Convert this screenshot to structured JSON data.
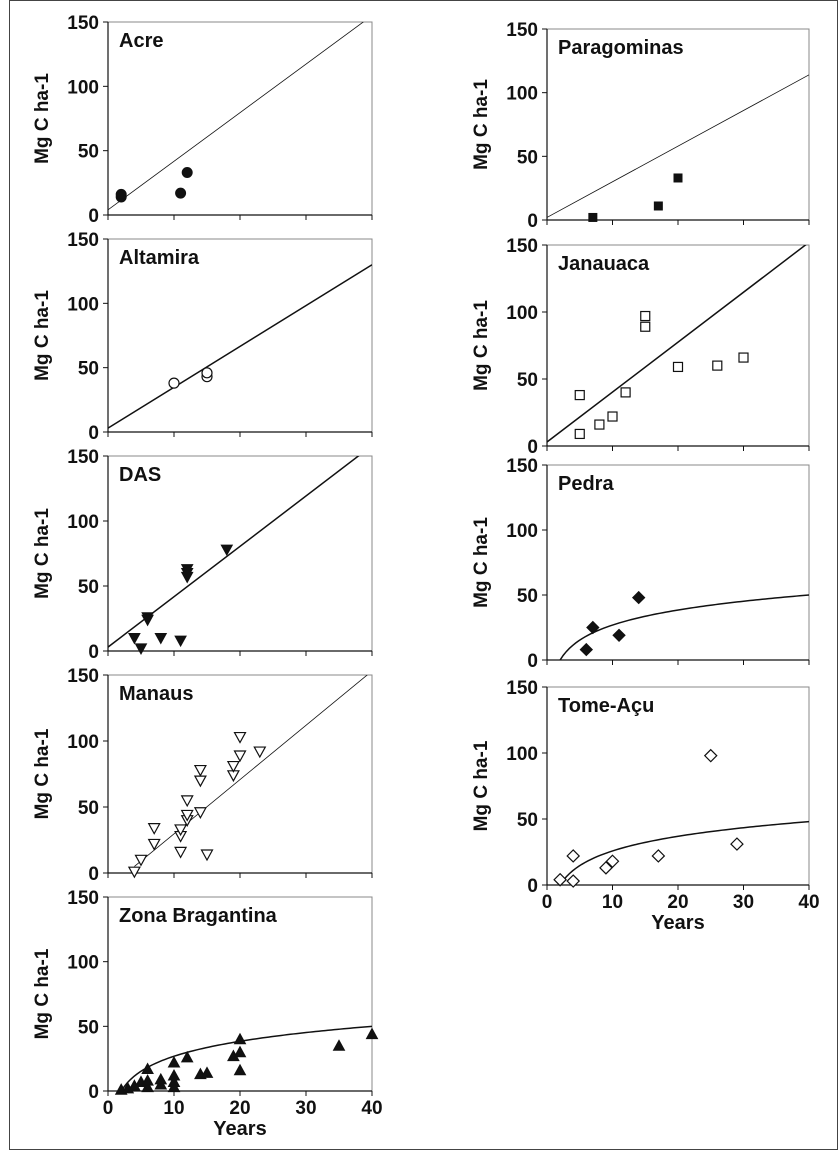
{
  "chart_data": [
    {
      "type": "scatter",
      "title": "Acre",
      "ylabel": "Mg C ha-1",
      "xlabel": "",
      "xlim": [
        0,
        40
      ],
      "ylim": [
        0,
        150
      ],
      "y_ticks": [
        0,
        50,
        100,
        150
      ],
      "x_ticks": [
        0,
        10,
        20,
        30,
        40
      ],
      "x_tick_labels_shown": false,
      "marker": "filled-circle",
      "fit": {
        "kind": "linear",
        "thin": true,
        "points": [
          [
            0,
            4
          ],
          [
            40,
            155
          ]
        ]
      },
      "series": [
        {
          "points": [
            [
              2,
              14
            ],
            [
              2,
              16
            ],
            [
              11,
              17
            ],
            [
              12,
              33
            ]
          ]
        }
      ]
    },
    {
      "type": "scatter",
      "title": "Altamira",
      "ylabel": "Mg C ha-1",
      "xlabel": "",
      "xlim": [
        0,
        40
      ],
      "ylim": [
        0,
        150
      ],
      "y_ticks": [
        0,
        50,
        100,
        150
      ],
      "x_ticks": [
        0,
        10,
        20,
        30,
        40
      ],
      "x_tick_labels_shown": false,
      "marker": "open-circle",
      "fit": {
        "kind": "linear",
        "thin": false,
        "points": [
          [
            0,
            3
          ],
          [
            40,
            130
          ]
        ]
      },
      "series": [
        {
          "points": [
            [
              10,
              38
            ],
            [
              15,
              43
            ],
            [
              15,
              46
            ]
          ]
        }
      ]
    },
    {
      "type": "scatter",
      "title": "DAS",
      "ylabel": "Mg C ha-1",
      "xlabel": "",
      "xlim": [
        0,
        40
      ],
      "ylim": [
        0,
        150
      ],
      "y_ticks": [
        0,
        50,
        100,
        150
      ],
      "x_ticks": [
        0,
        10,
        20,
        30,
        40
      ],
      "x_tick_labels_shown": false,
      "marker": "filled-triangle-down",
      "fit": {
        "kind": "linear",
        "thin": false,
        "points": [
          [
            0,
            3
          ],
          [
            40,
            158
          ]
        ]
      },
      "series": [
        {
          "points": [
            [
              4,
              10
            ],
            [
              5,
              2
            ],
            [
              6,
              26
            ],
            [
              6,
              24
            ],
            [
              8,
              10
            ],
            [
              11,
              8
            ],
            [
              12,
              57
            ],
            [
              12,
              60
            ],
            [
              12,
              63
            ],
            [
              18,
              78
            ]
          ]
        }
      ]
    },
    {
      "type": "scatter",
      "title": "Manaus",
      "ylabel": "Mg C ha-1",
      "xlabel": "",
      "xlim": [
        0,
        40
      ],
      "ylim": [
        0,
        150
      ],
      "y_ticks": [
        0,
        50,
        100,
        150
      ],
      "x_ticks": [
        0,
        10,
        20,
        30,
        40
      ],
      "x_tick_labels_shown": false,
      "marker": "open-triangle-down",
      "fit": {
        "kind": "linear",
        "thin": true,
        "points": [
          [
            4,
            5
          ],
          [
            40,
            153
          ]
        ]
      },
      "series": [
        {
          "points": [
            [
              4,
              1
            ],
            [
              5,
              10
            ],
            [
              7,
              22
            ],
            [
              7,
              34
            ],
            [
              11,
              16
            ],
            [
              11,
              28
            ],
            [
              11,
              33
            ],
            [
              12,
              40
            ],
            [
              12,
              44
            ],
            [
              12,
              55
            ],
            [
              14,
              46
            ],
            [
              14,
              70
            ],
            [
              14,
              78
            ],
            [
              15,
              14
            ],
            [
              19,
              74
            ],
            [
              19,
              81
            ],
            [
              20,
              89
            ],
            [
              20,
              103
            ],
            [
              23,
              92
            ]
          ]
        }
      ]
    },
    {
      "type": "scatter",
      "title": "Zona Bragantina",
      "ylabel": "Mg C ha-1",
      "xlabel": "Years",
      "xlim": [
        0,
        40
      ],
      "ylim": [
        0,
        150
      ],
      "y_ticks": [
        0,
        50,
        100,
        150
      ],
      "x_ticks": [
        0,
        10,
        20,
        30,
        40
      ],
      "x_tick_labels_shown": true,
      "marker": "filled-triangle-up",
      "fit": {
        "kind": "log",
        "thin": false,
        "x_range": [
          2,
          40
        ],
        "y_at_x_range": [
          0,
          50
        ]
      },
      "series": [
        {
          "points": [
            [
              2,
              1
            ],
            [
              3,
              2
            ],
            [
              4,
              4
            ],
            [
              5,
              7
            ],
            [
              6,
              3
            ],
            [
              6,
              8
            ],
            [
              6,
              17
            ],
            [
              8,
              5
            ],
            [
              8,
              9
            ],
            [
              10,
              3
            ],
            [
              10,
              7
            ],
            [
              10,
              12
            ],
            [
              10,
              22
            ],
            [
              12,
              26
            ],
            [
              14,
              13
            ],
            [
              15,
              14
            ],
            [
              19,
              27
            ],
            [
              20,
              16
            ],
            [
              20,
              30
            ],
            [
              20,
              40
            ],
            [
              35,
              35
            ],
            [
              40,
              44
            ]
          ]
        }
      ]
    },
    {
      "type": "scatter",
      "title": "Paragominas",
      "ylabel": "Mg C ha-1",
      "xlabel": "",
      "xlim": [
        0,
        40
      ],
      "ylim": [
        0,
        150
      ],
      "y_ticks": [
        0,
        50,
        100,
        150
      ],
      "x_ticks": [
        0,
        10,
        20,
        30,
        40
      ],
      "x_tick_labels_shown": false,
      "marker": "filled-square",
      "fit": {
        "kind": "linear",
        "thin": true,
        "points": [
          [
            0,
            2
          ],
          [
            40,
            114
          ]
        ]
      },
      "series": [
        {
          "points": [
            [
              7,
              2
            ],
            [
              17,
              11
            ],
            [
              20,
              33
            ]
          ]
        }
      ]
    },
    {
      "type": "scatter",
      "title": "Janauaca",
      "ylabel": "Mg C ha-1",
      "xlabel": "",
      "xlim": [
        0,
        40
      ],
      "ylim": [
        0,
        150
      ],
      "y_ticks": [
        0,
        50,
        100,
        150
      ],
      "x_ticks": [
        0,
        10,
        20,
        30,
        40
      ],
      "x_tick_labels_shown": false,
      "marker": "open-square",
      "fit": {
        "kind": "linear",
        "thin": false,
        "points": [
          [
            0,
            3
          ],
          [
            40,
            152
          ]
        ]
      },
      "series": [
        {
          "points": [
            [
              5,
              9
            ],
            [
              5,
              38
            ],
            [
              8,
              16
            ],
            [
              10,
              22
            ],
            [
              12,
              40
            ],
            [
              15,
              89
            ],
            [
              15,
              97
            ],
            [
              20,
              59
            ],
            [
              26,
              60
            ],
            [
              30,
              66
            ]
          ]
        }
      ]
    },
    {
      "type": "scatter",
      "title": "Pedra",
      "ylabel": "Mg C ha-1",
      "xlabel": "",
      "xlim": [
        0,
        40
      ],
      "ylim": [
        0,
        150
      ],
      "y_ticks": [
        0,
        50,
        100,
        150
      ],
      "x_ticks": [
        0,
        10,
        20,
        30,
        40
      ],
      "x_tick_labels_shown": false,
      "marker": "filled-diamond",
      "fit": {
        "kind": "log",
        "thin": false,
        "x_range": [
          2,
          40
        ],
        "y_at_x_range": [
          0,
          50
        ]
      },
      "series": [
        {
          "points": [
            [
              6,
              8
            ],
            [
              7,
              25
            ],
            [
              11,
              19
            ],
            [
              14,
              48
            ]
          ]
        }
      ]
    },
    {
      "type": "scatter",
      "title": "Tome-Açu",
      "ylabel": "Mg C ha-1",
      "xlabel": "Years",
      "xlim": [
        0,
        40
      ],
      "ylim": [
        0,
        150
      ],
      "y_ticks": [
        0,
        50,
        100,
        150
      ],
      "x_ticks": [
        0,
        10,
        20,
        30,
        40
      ],
      "x_tick_labels_shown": true,
      "marker": "open-diamond",
      "fit": {
        "kind": "log",
        "thin": false,
        "x_range": [
          2,
          40
        ],
        "y_at_x_range": [
          0,
          48
        ]
      },
      "series": [
        {
          "points": [
            [
              2,
              4
            ],
            [
              4,
              3
            ],
            [
              4,
              22
            ],
            [
              9,
              13
            ],
            [
              10,
              18
            ],
            [
              17,
              22
            ],
            [
              25,
              98
            ],
            [
              29,
              31
            ]
          ]
        }
      ]
    }
  ]
}
